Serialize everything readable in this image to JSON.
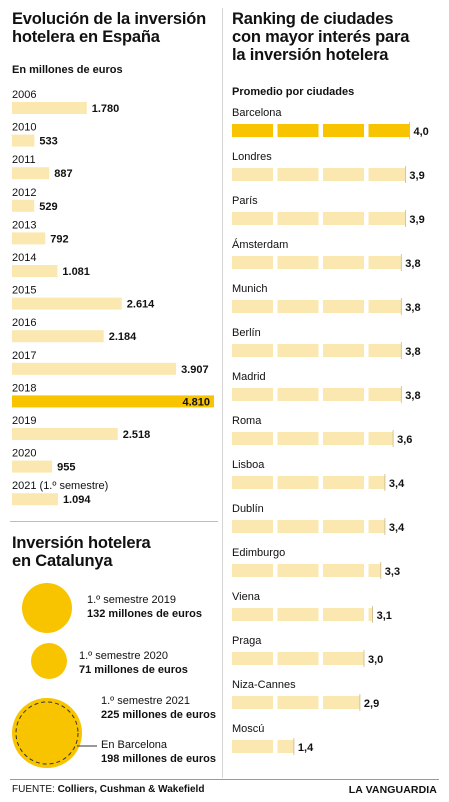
{
  "left": {
    "title_line1": "Evolución de la inversión",
    "title_line2": "hotelera en España",
    "unit_label": "En millones de euros"
  },
  "catalonia": {
    "title_line1": "Inversión hotelera",
    "title_line2": "en Catalunya",
    "items": [
      {
        "period": "1.º semestre 2019",
        "amount": "132 millones de euros"
      },
      {
        "period": "1.º semestre 2020",
        "amount": "71 millones de euros"
      },
      {
        "period": "1.º semestre 2021",
        "amount": "225 millones de euros"
      }
    ],
    "barcelona_label": "En Barcelona",
    "barcelona_amount": "198 millones de euros"
  },
  "right": {
    "title_line1": "Ranking de ciudades",
    "title_line2": "con mayor interés para",
    "title_line3": "la inversión hotelera",
    "subtitle": "Promedio por ciudades"
  },
  "footer": {
    "source_label": "FUENTE:",
    "source_value": "Colliers, Cushman & Wakefield",
    "logo": "LA VANGUARDIA"
  },
  "colors": {
    "bar_light": "#fbe8b0",
    "bar_highlight": "#f8c400",
    "circle": "#f8c400"
  },
  "chart_data": [
    {
      "type": "bar",
      "orientation": "horizontal",
      "title": "Evolución de la inversión hotelera en España",
      "unit": "En millones de euros",
      "categories": [
        "2006",
        "2010",
        "2011",
        "2012",
        "2013",
        "2014",
        "2015",
        "2016",
        "2017",
        "2018",
        "2019",
        "2020",
        "2021 (1.º semestre)"
      ],
      "values": [
        1780,
        533,
        887,
        529,
        792,
        1081,
        2614,
        2184,
        3907,
        4810,
        2518,
        955,
        1094
      ],
      "value_labels": [
        "1.780",
        "533",
        "887",
        "529",
        "792",
        "1.081",
        "2.614",
        "2.184",
        "3.907",
        "4.810",
        "2.518",
        "955",
        "1.094"
      ],
      "highlight": "2018",
      "xlim": [
        0,
        4810
      ]
    },
    {
      "type": "bubble",
      "title": "Inversión hotelera en Catalunya",
      "unit": "millones de euros",
      "categories": [
        "1.º semestre 2019",
        "1.º semestre 2020",
        "1.º semestre 2021",
        "En Barcelona"
      ],
      "values": [
        132,
        71,
        225,
        198
      ]
    },
    {
      "type": "bar",
      "orientation": "horizontal",
      "title": "Ranking de ciudades con mayor interés para la inversión hotelera",
      "subtitle": "Promedio por ciudades",
      "categories": [
        "Barcelona",
        "Londres",
        "París",
        "Ámsterdam",
        "Munich",
        "Berlín",
        "Madrid",
        "Roma",
        "Lisboa",
        "Dublín",
        "Edimburgo",
        "Viena",
        "Praga",
        "Niza-Cannes",
        "Moscú"
      ],
      "values": [
        4.0,
        3.9,
        3.9,
        3.8,
        3.8,
        3.8,
        3.8,
        3.6,
        3.4,
        3.4,
        3.3,
        3.1,
        3.0,
        2.9,
        1.4
      ],
      "value_labels": [
        "4,0",
        "3,9",
        "3,9",
        "3,8",
        "3,8",
        "3,8",
        "3,8",
        "3,6",
        "3,4",
        "3,4",
        "3,3",
        "3,1",
        "3,0",
        "2,9",
        "1,4"
      ],
      "highlight": "Barcelona",
      "xlim": [
        0,
        4.0
      ],
      "segment_unit": 1
    }
  ]
}
